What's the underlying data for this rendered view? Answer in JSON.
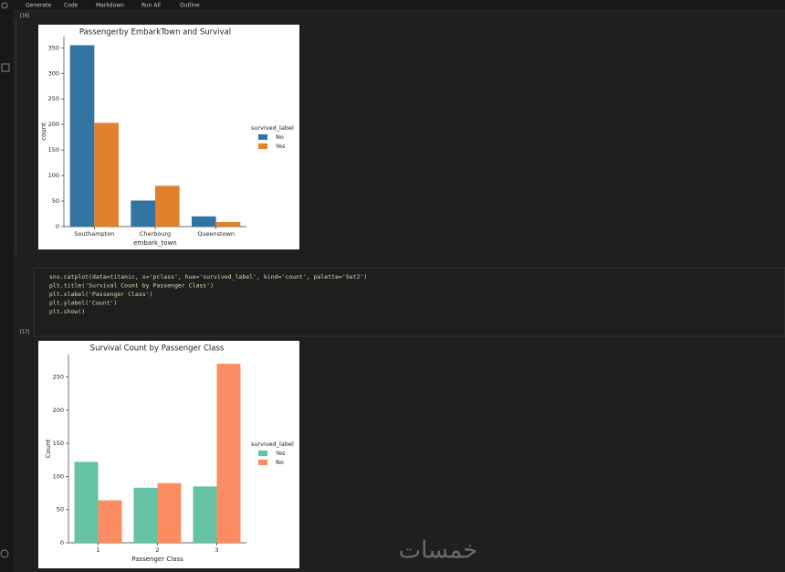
{
  "toolbar": {
    "buttons": [
      "Generate",
      "Code",
      "Markdown",
      "Run All",
      "Outline"
    ]
  },
  "cells": [
    {
      "label": "[16]"
    },
    {
      "label": "[17]",
      "code": [
        "sns.catplot(data=titanic, x='pclass', hue='survived_label', kind='count', palette='Set2')",
        "plt.title('Survival Count by Passenger Class')",
        "plt.xlabel('Passenger Class')",
        "plt.ylabel('Count')",
        "plt.show()"
      ]
    }
  ],
  "watermark": "خمسات",
  "chart_data": [
    {
      "type": "bar",
      "title": "Passengerby EmbarkTown and Survival",
      "xlabel": "embark_town",
      "ylabel": "count",
      "categories": [
        "Southampton",
        "Cherbourg",
        "Queenstown"
      ],
      "series": [
        {
          "name": "No",
          "color": "#3274a1",
          "values": [
            355,
            51,
            20
          ]
        },
        {
          "name": "Yes",
          "color": "#e1812c",
          "values": [
            203,
            80,
            9
          ]
        }
      ],
      "legend_title": "survived_label",
      "legend": "right",
      "ylim": [
        0,
        372
      ],
      "yticks": [
        0,
        50,
        100,
        150,
        200,
        250,
        300,
        350
      ]
    },
    {
      "type": "bar",
      "title": "Survival Count by Passenger Class",
      "xlabel": "Passenger Class",
      "ylabel": "Count",
      "categories": [
        "1",
        "2",
        "3"
      ],
      "series": [
        {
          "name": "Yes",
          "color": "#66c2a5",
          "values": [
            122,
            83,
            85
          ]
        },
        {
          "name": "No",
          "color": "#fc8d62",
          "values": [
            64,
            90,
            270
          ]
        }
      ],
      "legend_title": "survived_label",
      "legend": "right",
      "ylim": [
        0,
        284
      ],
      "yticks": [
        0,
        50,
        100,
        150,
        200,
        250
      ]
    }
  ]
}
